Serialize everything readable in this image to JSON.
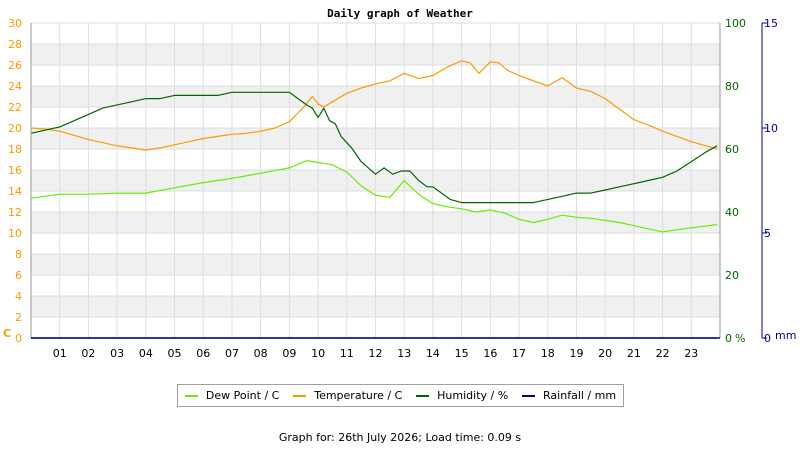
{
  "chart_data": {
    "type": "line",
    "title": "Daily graph of Weather",
    "x_tick_labels": [
      "01",
      "02",
      "03",
      "04",
      "05",
      "06",
      "07",
      "08",
      "09",
      "10",
      "11",
      "12",
      "13",
      "14",
      "15",
      "16",
      "17",
      "18",
      "19",
      "20",
      "21",
      "22",
      "23"
    ],
    "xlim": [
      0,
      24
    ],
    "y_left": {
      "unit_label": "C",
      "ticks": [
        "0",
        "2",
        "4",
        "6",
        "8",
        "10",
        "12",
        "14",
        "16",
        "18",
        "20",
        "22",
        "24",
        "26",
        "28",
        "30"
      ],
      "range": [
        0,
        30
      ],
      "color": "#ff9900"
    },
    "y_right_humidity": {
      "unit_label": "%",
      "ticks": [
        "0",
        "20",
        "40",
        "60",
        "80",
        "100"
      ],
      "range": [
        0,
        100
      ],
      "color": "#006600"
    },
    "y_right_rainfall": {
      "unit_label": "mm",
      "ticks": [
        "0",
        "5",
        "10",
        "15"
      ],
      "range": [
        0,
        15
      ],
      "color": "#000099"
    },
    "grid": true,
    "legend_position": "bottom",
    "series": [
      {
        "name": "Dew Point / C",
        "color": "#66ee00",
        "axis": "left",
        "x": [
          0,
          1,
          2,
          3,
          4,
          5,
          6,
          7,
          8,
          9,
          9.6,
          10.5,
          11,
          11.5,
          12,
          12.5,
          13,
          13.3,
          13.6,
          14,
          14.5,
          15,
          15.5,
          16,
          16.5,
          17,
          17.5,
          18,
          18.5,
          19,
          19.5,
          20,
          20.5,
          21,
          21.5,
          22,
          22.5,
          23,
          23.9
        ],
        "values": [
          13.3,
          13.7,
          13.7,
          13.8,
          13.8,
          14.3,
          14.8,
          15.2,
          15.7,
          16.2,
          16.9,
          16.5,
          15.8,
          14.5,
          13.6,
          13.4,
          15.0,
          14.2,
          13.5,
          12.8,
          12.5,
          12.3,
          12.0,
          12.2,
          11.9,
          11.3,
          11.0,
          11.3,
          11.7,
          11.5,
          11.4,
          11.2,
          11.0,
          10.7,
          10.4,
          10.1,
          10.3,
          10.5,
          10.8
        ]
      },
      {
        "name": "Temperature / C",
        "color": "#ff9900",
        "axis": "left",
        "x": [
          0,
          0.5,
          1,
          1.5,
          2,
          2.5,
          3,
          3.5,
          4,
          4.5,
          5,
          5.5,
          6,
          6.5,
          7,
          7.5,
          8,
          8.5,
          9,
          9.5,
          9.8,
          10,
          10.2,
          10.5,
          11,
          11.5,
          12,
          12.5,
          13,
          13.5,
          14,
          14.5,
          15,
          15.3,
          15.6,
          16,
          16.3,
          16.6,
          17,
          17.5,
          18,
          18.5,
          19,
          19.5,
          20,
          20.5,
          21,
          21.5,
          22,
          22.5,
          23,
          23.9
        ],
        "values": [
          20.0,
          19.9,
          19.7,
          19.3,
          18.9,
          18.6,
          18.3,
          18.1,
          17.9,
          18.1,
          18.4,
          18.7,
          19.0,
          19.2,
          19.4,
          19.5,
          19.7,
          20.0,
          20.6,
          22.0,
          23.0,
          22.3,
          22.0,
          22.5,
          23.3,
          23.8,
          24.2,
          24.5,
          25.2,
          24.7,
          25.0,
          25.8,
          26.4,
          26.2,
          25.2,
          26.3,
          26.2,
          25.5,
          25.0,
          24.5,
          24.0,
          24.8,
          23.8,
          23.5,
          22.8,
          21.8,
          20.8,
          20.3,
          19.7,
          19.2,
          18.7,
          18.0
        ]
      },
      {
        "name": "Humidity / %",
        "color": "#006600",
        "axis": "right",
        "x": [
          0,
          0.5,
          1,
          1.5,
          2,
          2.5,
          3,
          3.5,
          4,
          4.5,
          5,
          5.5,
          6,
          6.5,
          7,
          7.5,
          8,
          8.3,
          8.6,
          9,
          9.3,
          9.6,
          9.8,
          10,
          10.2,
          10.4,
          10.6,
          10.8,
          11,
          11.2,
          11.5,
          12,
          12.3,
          12.6,
          12.9,
          13.2,
          13.5,
          13.8,
          14,
          14.3,
          14.6,
          15,
          15.5,
          16,
          16.5,
          17,
          17.5,
          18,
          18.5,
          19,
          19.5,
          20,
          20.5,
          21,
          21.5,
          22,
          22.5,
          23,
          23.5,
          23.9
        ],
        "values": [
          65,
          66,
          67,
          69,
          71,
          73,
          74,
          75,
          76,
          76,
          77,
          77,
          77,
          77,
          78,
          78,
          78,
          78,
          78,
          78,
          76,
          74,
          73,
          70,
          73,
          69,
          68,
          64,
          62,
          60,
          56,
          52,
          54,
          52,
          53,
          53,
          50,
          48,
          48,
          46,
          44,
          43,
          43,
          43,
          43,
          43,
          43,
          44,
          45,
          46,
          46,
          47,
          48,
          49,
          50,
          51,
          53,
          56,
          59,
          61
        ]
      },
      {
        "name": "Rainfall / mm",
        "color": "#000099",
        "axis": "right2",
        "x": [
          0,
          23.9
        ],
        "values": [
          0,
          0
        ]
      }
    ]
  },
  "footer": "Graph for: 26th July 2026; Load time: 0.09 s"
}
